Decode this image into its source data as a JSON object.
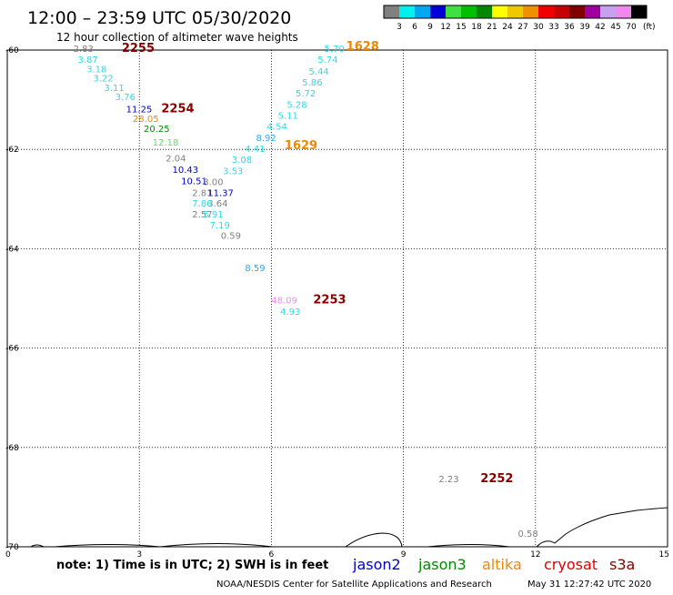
{
  "header": {
    "title": "12:00 – 23:59 UTC 05/30/2020",
    "subtitle": "12 hour collection of altimeter wave heights"
  },
  "colorbar": {
    "labels": [
      "3",
      "6",
      "9",
      "12",
      "15",
      "18",
      "21",
      "24",
      "27",
      "30",
      "33",
      "36",
      "39",
      "42",
      "45",
      "70"
    ],
    "colors": [
      "#808080",
      "#00f0f0",
      "#00a8f0",
      "#0000d8",
      "#40e040",
      "#00c000",
      "#008800",
      "#ffff00",
      "#f0c800",
      "#f09000",
      "#f00000",
      "#c80000",
      "#800000",
      "#a000a0",
      "#c8a0f0",
      "#f088f0",
      "#000000"
    ],
    "unit": "(ft)"
  },
  "note": "note: 1) Time is in UTC; 2) SWH is in feet",
  "satellites": [
    {
      "name": "jason2",
      "color": "#0000cc"
    },
    {
      "name": "jason3",
      "color": "#008800"
    },
    {
      "name": "altika",
      "color": "#ee8800"
    },
    {
      "name": "cryosat",
      "color": "#dd0000"
    },
    {
      "name": "s3a",
      "color": "#880000"
    }
  ],
  "footer": {
    "credit": "NOAA/NESDIS Center for Satellite Applications and Research",
    "timestamp": "May 31 12:27:42 UTC 2020"
  },
  "chart_data": {
    "type": "scatter",
    "xlim": [
      0,
      15
    ],
    "ylim": [
      -70,
      -60
    ],
    "x_ticks": [
      {
        "label": "0",
        "v": 0
      },
      {
        "label": "3",
        "v": 3
      },
      {
        "label": "6",
        "v": 6
      },
      {
        "label": "9",
        "v": 9
      },
      {
        "label": "12",
        "v": 12
      },
      {
        "label": "15",
        "v": 15
      }
    ],
    "y_ticks": [
      {
        "label": "-60",
        "v": -60
      },
      {
        "label": "-62",
        "v": -62
      },
      {
        "label": "-64",
        "v": -64
      },
      {
        "label": "-66",
        "v": -66
      },
      {
        "label": "-68",
        "v": -68
      },
      {
        "label": "-70",
        "v": -70
      }
    ],
    "grid": true,
    "points": [
      {
        "x": 1.5,
        "y": -60.04,
        "t": "2.83",
        "c": "#808080"
      },
      {
        "x": 1.6,
        "y": -60.26,
        "t": "3.87",
        "c": "#30d8e8"
      },
      {
        "x": 1.8,
        "y": -60.45,
        "t": "3.18",
        "c": "#30d8e8"
      },
      {
        "x": 1.95,
        "y": -60.63,
        "t": "3.22",
        "c": "#30d8e8"
      },
      {
        "x": 2.2,
        "y": -60.82,
        "t": "3.11",
        "c": "#30d8e8"
      },
      {
        "x": 2.45,
        "y": -61.01,
        "t": "3.76",
        "c": "#30d8e8"
      },
      {
        "x": 2.7,
        "y": -61.25,
        "t": "11.25",
        "c": "#0000cc"
      },
      {
        "x": 2.85,
        "y": -61.45,
        "t": "28.05",
        "c": "#ee8800"
      },
      {
        "x": 3.1,
        "y": -61.65,
        "t": "20.25",
        "c": "#008800"
      },
      {
        "x": 3.3,
        "y": -61.92,
        "t": "12.18",
        "c": "#60e060"
      },
      {
        "x": 3.6,
        "y": -62.24,
        "t": "2.04",
        "c": "#808080"
      },
      {
        "x": 3.75,
        "y": -62.47,
        "t": "10.43",
        "c": "#0000cc"
      },
      {
        "x": 3.95,
        "y": -62.7,
        "t": "10.51",
        "c": "#0000cc"
      },
      {
        "x": 4.2,
        "y": -62.94,
        "t": "2.81",
        "c": "#808080"
      },
      {
        "x": 4.55,
        "y": -62.94,
        "t": "11.37",
        "c": "#0000cc"
      },
      {
        "x": 4.45,
        "y": -62.72,
        "t": "3.00",
        "c": "#808080"
      },
      {
        "x": 4.55,
        "y": -63.15,
        "t": "3.64",
        "c": "#808080"
      },
      {
        "x": 4.2,
        "y": -63.15,
        "t": "7.86",
        "c": "#30d8e8"
      },
      {
        "x": 4.2,
        "y": -63.37,
        "t": "2.57",
        "c": "#808080"
      },
      {
        "x": 4.45,
        "y": -63.37,
        "t": "5.91",
        "c": "#30d8e8"
      },
      {
        "x": 4.6,
        "y": -63.59,
        "t": "7.19",
        "c": "#30d8e8"
      },
      {
        "x": 4.85,
        "y": -63.8,
        "t": "0.59",
        "c": "#808080"
      },
      {
        "x": 4.9,
        "y": -62.5,
        "t": "3.53",
        "c": "#30d8e8"
      },
      {
        "x": 5.1,
        "y": -62.27,
        "t": "3.08",
        "c": "#30d8e8"
      },
      {
        "x": 5.4,
        "y": -62.05,
        "t": "4.41",
        "c": "#30d8e8"
      },
      {
        "x": 5.65,
        "y": -61.83,
        "t": "8.92",
        "c": "#30a8f0"
      },
      {
        "x": 5.9,
        "y": -61.6,
        "t": "4.54",
        "c": "#30d8e8"
      },
      {
        "x": 6.15,
        "y": -61.38,
        "t": "5.11",
        "c": "#30d8e8"
      },
      {
        "x": 6.35,
        "y": -61.16,
        "t": "5.28",
        "c": "#30d8e8"
      },
      {
        "x": 6.55,
        "y": -60.93,
        "t": "5.72",
        "c": "#30d8e8"
      },
      {
        "x": 6.7,
        "y": -60.71,
        "t": "5.86",
        "c": "#30d8e8"
      },
      {
        "x": 6.85,
        "y": -60.49,
        "t": "5.44",
        "c": "#30d8e8"
      },
      {
        "x": 7.05,
        "y": -60.26,
        "t": "5.74",
        "c": "#30d8e8"
      },
      {
        "x": 7.2,
        "y": -60.04,
        "t": "5.70",
        "c": "#30d8e8"
      },
      {
        "x": 5.4,
        "y": -64.45,
        "t": "8.59",
        "c": "#30a8f0"
      },
      {
        "x": 6.0,
        "y": -65.1,
        "t": "48.09",
        "c": "#f088f0"
      },
      {
        "x": 6.2,
        "y": -65.33,
        "t": "4.93",
        "c": "#30d8e8"
      },
      {
        "x": 9.8,
        "y": -68.7,
        "t": "2.23",
        "c": "#808080"
      },
      {
        "x": 11.6,
        "y": -69.8,
        "t": "0.58",
        "c": "#808080"
      }
    ],
    "pass_labels": [
      {
        "x": 2.6,
        "y": -60.04,
        "t": "2255",
        "c": "#880000"
      },
      {
        "x": 3.5,
        "y": -61.25,
        "t": "2254",
        "c": "#880000"
      },
      {
        "x": 7.7,
        "y": -60.0,
        "t": "1628",
        "c": "#ee8800"
      },
      {
        "x": 6.3,
        "y": -62.0,
        "t": "1629",
        "c": "#ee8800"
      },
      {
        "x": 6.95,
        "y": -65.1,
        "t": "2253",
        "c": "#880000"
      },
      {
        "x": 10.75,
        "y": -68.7,
        "t": "2252",
        "c": "#880000"
      }
    ]
  }
}
